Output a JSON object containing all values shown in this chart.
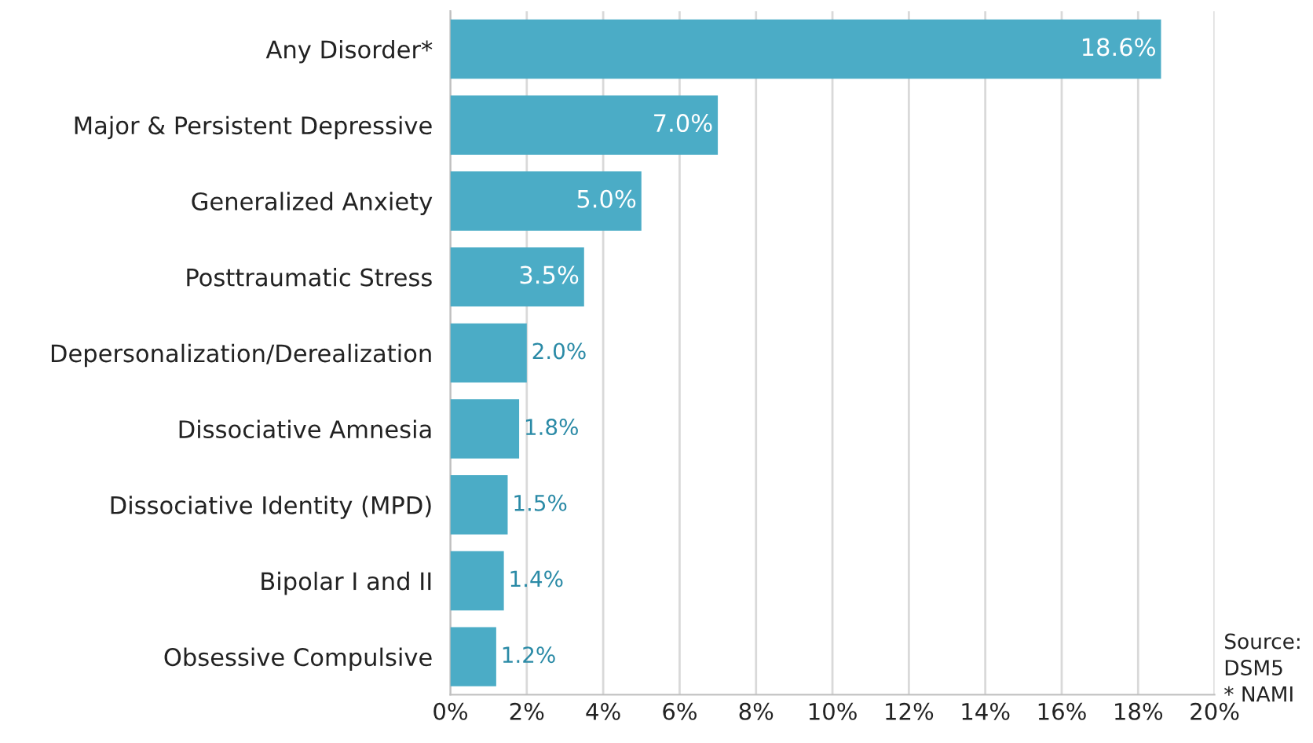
{
  "chart_data": {
    "type": "bar",
    "orientation": "horizontal",
    "categories": [
      "Any Disorder*",
      "Major & Persistent Depressive",
      "Generalized Anxiety",
      "Posttraumatic Stress",
      "Depersonalization/Derealization",
      "Dissociative Amnesia",
      "Dissociative Identity (MPD)",
      "Bipolar I and II",
      "Obsessive Compulsive"
    ],
    "values": [
      18.6,
      7.0,
      5.0,
      3.5,
      2.0,
      1.8,
      1.5,
      1.4,
      1.2
    ],
    "value_labels": [
      "18.6%",
      "7.0%",
      "5.0%",
      "3.5%",
      "2.0%",
      "1.8%",
      "1.5%",
      "1.4%",
      "1.2%"
    ],
    "color": "#4bacc6",
    "xlim": [
      0,
      20
    ],
    "xticks": [
      {
        "value": 0,
        "label": "0%"
      },
      {
        "value": 2,
        "label": "2%"
      },
      {
        "value": 4,
        "label": "4%"
      },
      {
        "value": 6,
        "label": "6%"
      },
      {
        "value": 8,
        "label": "8%"
      },
      {
        "value": 10,
        "label": "10%"
      },
      {
        "value": 12,
        "label": "12%"
      },
      {
        "value": 14,
        "label": "14%"
      },
      {
        "value": 16,
        "label": "16%"
      },
      {
        "value": 18,
        "label": "18%"
      },
      {
        "value": 20,
        "label": "20%"
      }
    ],
    "grid": "x",
    "legend": false,
    "annotations": [
      "Source:\nDSM5\n* NAMI"
    ]
  }
}
